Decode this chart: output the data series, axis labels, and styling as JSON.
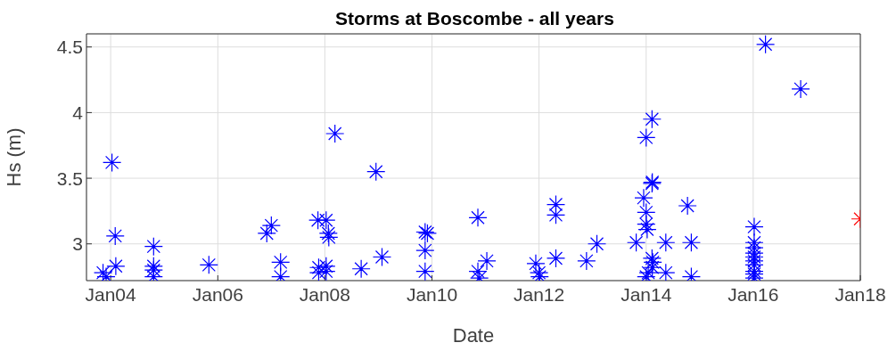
{
  "chart_data": {
    "type": "scatter",
    "title": "Storms at Boscombe - all years",
    "xlabel": "Date",
    "ylabel": "Hs (m)",
    "marker": "cross",
    "grid": true,
    "legend": false,
    "xlim": [
      "2003-07-20",
      "2018-01-01"
    ],
    "xticks": [
      {
        "value": "2004-01-01",
        "label": "Jan04"
      },
      {
        "value": "2006-01-01",
        "label": "Jan06"
      },
      {
        "value": "2008-01-01",
        "label": "Jan08"
      },
      {
        "value": "2010-01-01",
        "label": "Jan10"
      },
      {
        "value": "2012-01-01",
        "label": "Jan12"
      },
      {
        "value": "2014-01-01",
        "label": "Jan14"
      },
      {
        "value": "2016-01-01",
        "label": "Jan16"
      },
      {
        "value": "2018-01-01",
        "label": "Jan18"
      }
    ],
    "ylim": [
      2.72,
      4.6
    ],
    "yticks": [
      3,
      3.5,
      4,
      4.5
    ],
    "series": [
      {
        "color": "#0000ff",
        "x": [
          "2003-11-10",
          "2003-12-01",
          "2004-01-10",
          "2004-02-01",
          "2004-02-05",
          "2004-10-20",
          "2004-10-20",
          "2004-10-20",
          "2004-10-20",
          "2005-11-01",
          "2006-12-01",
          "2007-01-01",
          "2007-03-05",
          "2007-03-05",
          "2007-11-15",
          "2008-01-10",
          "2008-01-25",
          "2008-01-28",
          "2008-03-10",
          "2007-11-20",
          "2007-11-20",
          "2008-01-10",
          "2008-01-10",
          "2008-09-05",
          "2008-12-15",
          "2009-01-25",
          "2009-11-15",
          "2009-12-01",
          "2009-11-15",
          "2009-11-15",
          "2010-11-10",
          "2010-11-10",
          "2010-11-20",
          "2011-01-10",
          "2011-12-10",
          "2012-01-01",
          "2012-01-05",
          "2012-04-25",
          "2012-04-25",
          "2012-04-25",
          "2012-11-20",
          "2013-01-30",
          "2013-10-25",
          "2013-12-15",
          "2014-01-01",
          "2014-01-01",
          "2014-01-08",
          "2014-01-01",
          "2014-02-10",
          "2014-02-12",
          "2014-02-10",
          "2014-02-10",
          "2014-02-15",
          "2014-02-12",
          "2014-01-01",
          "2014-01-15",
          "2014-05-15",
          "2014-05-15",
          "2014-10-10",
          "2014-11-05",
          "2014-11-05",
          "2016-01-08",
          "2016-01-08",
          "2016-01-08",
          "2016-01-08",
          "2016-01-08",
          "2016-01-08",
          "2016-01-08",
          "2016-01-08",
          "2016-01-08",
          "2016-01-08",
          "2016-03-25",
          "2016-11-20"
        ],
        "values": [
          2.78,
          2.75,
          3.62,
          3.06,
          2.83,
          2.98,
          2.83,
          2.8,
          2.75,
          2.84,
          3.08,
          3.14,
          2.86,
          2.75,
          3.18,
          3.18,
          3.08,
          3.05,
          3.84,
          2.82,
          2.78,
          2.83,
          2.79,
          2.81,
          3.55,
          2.9,
          3.09,
          3.08,
          2.95,
          2.79,
          3.2,
          2.79,
          2.74,
          2.87,
          2.85,
          2.78,
          2.75,
          3.3,
          3.22,
          2.89,
          2.87,
          3.0,
          3.01,
          3.35,
          3.24,
          3.15,
          3.11,
          3.81,
          3.95,
          3.47,
          3.46,
          2.89,
          2.86,
          2.82,
          2.75,
          2.78,
          3.01,
          2.78,
          3.29,
          3.01,
          2.75,
          3.13,
          3.01,
          2.97,
          2.93,
          2.9,
          2.87,
          2.84,
          2.79,
          2.77,
          2.74,
          4.52,
          4.18
        ]
      },
      {
        "color": "#ff0000",
        "x": [
          "2018-01-01"
        ],
        "values": [
          3.19
        ]
      }
    ]
  }
}
